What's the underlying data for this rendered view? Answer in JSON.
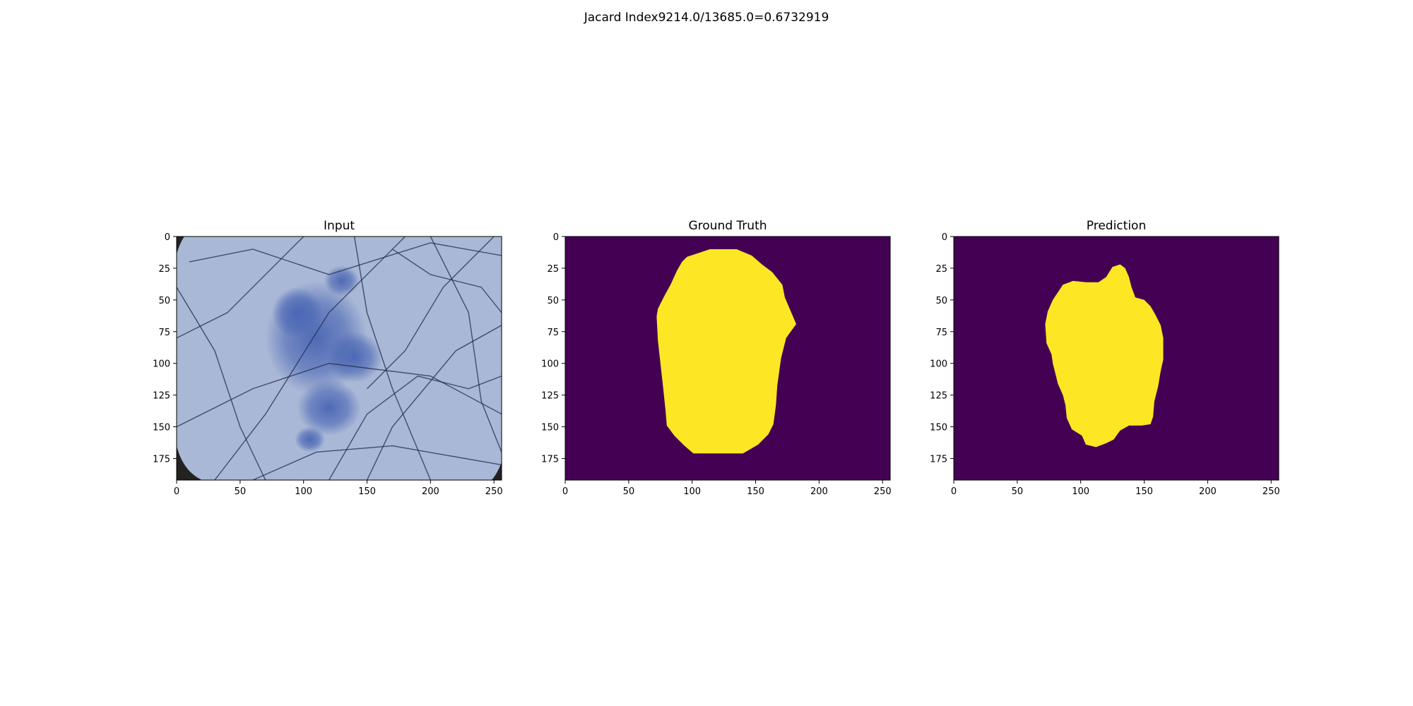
{
  "suptitle": "Jacard Index9214.0/13685.0=0.6732919",
  "chart_data": [
    {
      "type": "image",
      "title": "Input",
      "xlim": [
        0,
        256
      ],
      "ylim": [
        192,
        0
      ],
      "xticks": [
        0,
        50,
        100,
        150,
        200,
        250
      ],
      "yticks": [
        0,
        25,
        50,
        75,
        100,
        125,
        150,
        175
      ],
      "content": "dermoscopy image of a bluish skin lesion with dark hairs",
      "colors": {
        "background": "#a9b8d6",
        "lesion": "#4a66b4",
        "hair": "#1e2a4a",
        "corner": "#222222"
      }
    },
    {
      "type": "heatmap",
      "title": "Ground Truth",
      "xlim": [
        0,
        256
      ],
      "ylim": [
        192,
        0
      ],
      "xticks": [
        0,
        50,
        100,
        150,
        200,
        250
      ],
      "yticks": [
        0,
        25,
        50,
        75,
        100,
        125,
        150,
        175
      ],
      "mask_polygon": [
        [
          96,
          16
        ],
        [
          114,
          10
        ],
        [
          135,
          10
        ],
        [
          147,
          15
        ],
        [
          155,
          22
        ],
        [
          163,
          28
        ],
        [
          171,
          38
        ],
        [
          173,
          48
        ],
        [
          182,
          69
        ],
        [
          174,
          80
        ],
        [
          170,
          96
        ],
        [
          167,
          118
        ],
        [
          166,
          133
        ],
        [
          164,
          148
        ],
        [
          160,
          156
        ],
        [
          152,
          164
        ],
        [
          140,
          171
        ],
        [
          130,
          171
        ],
        [
          112,
          171
        ],
        [
          101,
          171
        ],
        [
          94,
          165
        ],
        [
          86,
          157
        ],
        [
          80,
          149
        ],
        [
          79,
          137
        ],
        [
          77,
          118
        ],
        [
          75,
          100
        ],
        [
          73,
          82
        ],
        [
          72,
          63
        ],
        [
          73,
          57
        ],
        [
          78,
          47
        ],
        [
          83,
          38
        ],
        [
          88,
          27
        ],
        [
          92,
          20
        ]
      ],
      "colors": {
        "background": "#440154",
        "foreground": "#fde725"
      }
    },
    {
      "type": "heatmap",
      "title": "Prediction",
      "xlim": [
        0,
        256
      ],
      "ylim": [
        192,
        0
      ],
      "xticks": [
        0,
        50,
        100,
        150,
        200,
        250
      ],
      "yticks": [
        0,
        25,
        50,
        75,
        100,
        125,
        150,
        175
      ],
      "mask_polygon": [
        [
          86,
          38
        ],
        [
          94,
          35
        ],
        [
          104,
          36
        ],
        [
          114,
          36
        ],
        [
          120,
          32
        ],
        [
          125,
          24
        ],
        [
          131,
          22
        ],
        [
          135,
          25
        ],
        [
          138,
          32
        ],
        [
          140,
          40
        ],
        [
          143,
          48
        ],
        [
          150,
          50
        ],
        [
          155,
          55
        ],
        [
          159,
          62
        ],
        [
          163,
          70
        ],
        [
          165,
          80
        ],
        [
          165,
          97
        ],
        [
          163,
          106
        ],
        [
          161,
          118
        ],
        [
          158,
          130
        ],
        [
          157,
          142
        ],
        [
          155,
          148
        ],
        [
          148,
          149
        ],
        [
          138,
          149
        ],
        [
          131,
          153
        ],
        [
          126,
          160
        ],
        [
          120,
          163
        ],
        [
          112,
          166
        ],
        [
          104,
          164
        ],
        [
          101,
          157
        ],
        [
          93,
          152
        ],
        [
          89,
          143
        ],
        [
          88,
          133
        ],
        [
          86,
          125
        ],
        [
          82,
          116
        ],
        [
          80,
          108
        ],
        [
          78,
          100
        ],
        [
          77,
          93
        ],
        [
          73,
          84
        ],
        [
          72,
          69
        ],
        [
          74,
          59
        ],
        [
          78,
          50
        ],
        [
          82,
          44
        ]
      ],
      "colors": {
        "background": "#440154",
        "foreground": "#fde725"
      }
    }
  ]
}
